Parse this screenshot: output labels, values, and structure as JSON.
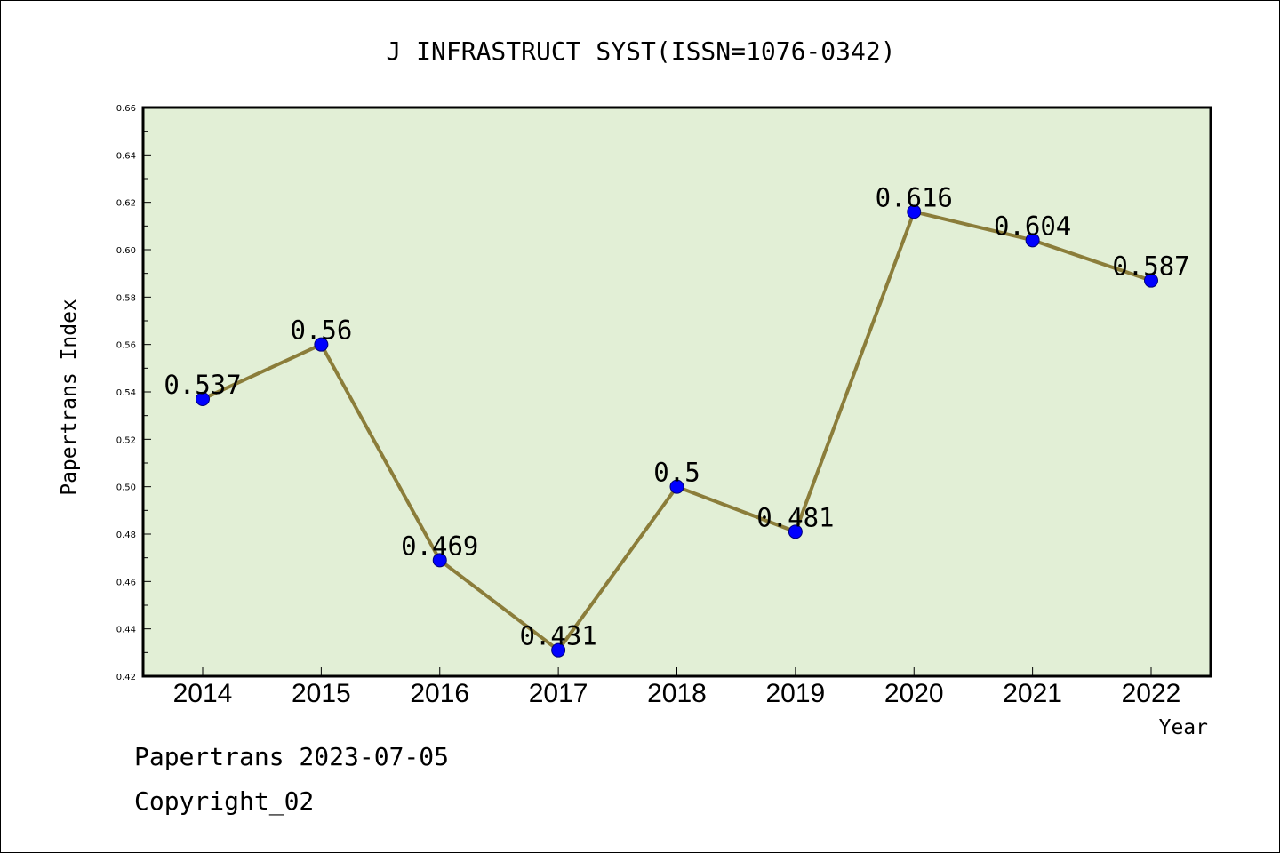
{
  "footer": {
    "line1": "Papertrans 2023-07-05",
    "line2": "Copyright_02"
  },
  "colors": {
    "plot_background": "#e2efd6",
    "line": "#8b7d3a",
    "marker": "#0000ff"
  },
  "chart_data": {
    "type": "line",
    "title": "J INFRASTRUCT SYST(ISSN=1076-0342)",
    "xlabel": "Year",
    "ylabel": "Papertrans Index",
    "categories": [
      "2014",
      "2015",
      "2016",
      "2017",
      "2018",
      "2019",
      "2020",
      "2021",
      "2022"
    ],
    "series": [
      {
        "values": [
          0.537,
          0.56,
          0.469,
          0.431,
          0.5,
          0.481,
          0.616,
          0.604,
          0.587
        ],
        "labels": [
          "0.537",
          "0.56",
          "0.469",
          "0.431",
          "0.5",
          "0.481",
          "0.616",
          "0.604",
          "0.587"
        ]
      }
    ],
    "ylim": [
      0.42,
      0.66
    ],
    "yticks": [
      "0.42",
      "0.44",
      "0.46",
      "0.48",
      "0.50",
      "0.52",
      "0.54",
      "0.56",
      "0.58",
      "0.60",
      "0.62",
      "0.64",
      "0.66"
    ],
    "grid": false,
    "legend": "none",
    "data_labels": true
  }
}
